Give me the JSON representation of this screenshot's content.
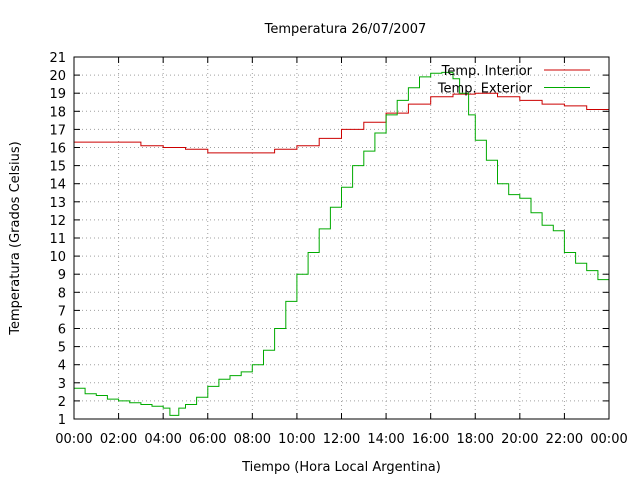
{
  "chart_data": {
    "type": "line",
    "title": "Temperatura 26/07/2007",
    "xlabel": "Tiempo (Hora Local Argentina)",
    "ylabel": "Temperatura (Grados Celsius)",
    "x_ticks": [
      "00:00",
      "02:00",
      "04:00",
      "06:00",
      "08:00",
      "10:00",
      "12:00",
      "14:00",
      "16:00",
      "18:00",
      "20:00",
      "22:00",
      "00:00"
    ],
    "y_ticks": [
      "1",
      "2",
      "3",
      "4",
      "5",
      "6",
      "7",
      "8",
      "9",
      "10",
      "11",
      "12",
      "13",
      "14",
      "15",
      "16",
      "17",
      "18",
      "19",
      "20",
      "21"
    ],
    "xlim": [
      0,
      24
    ],
    "ylim": [
      1,
      21
    ],
    "grid": true,
    "legend_position": "top-right",
    "series": [
      {
        "name": "Temp. Interior",
        "color": "#cc0000",
        "x": [
          0,
          1,
          2,
          3,
          4,
          5,
          6,
          7,
          8,
          9,
          10,
          11,
          12,
          13,
          14,
          15,
          16,
          17,
          18,
          19,
          20,
          21,
          22,
          23,
          24
        ],
        "values": [
          16.3,
          16.3,
          16.3,
          16.1,
          16.0,
          15.9,
          15.7,
          15.7,
          15.7,
          15.9,
          16.1,
          16.5,
          17.0,
          17.4,
          17.9,
          18.4,
          18.8,
          18.95,
          19.0,
          18.8,
          18.6,
          18.4,
          18.3,
          18.1,
          17.8
        ]
      },
      {
        "name": "Temp. Exterior",
        "color": "#00aa00",
        "x": [
          0,
          0.5,
          1,
          1.5,
          2,
          2.5,
          3,
          3.5,
          4,
          4.3,
          4.7,
          5,
          5.5,
          6,
          6.5,
          7,
          7.5,
          8,
          8.5,
          9,
          9.5,
          10,
          10.5,
          11,
          11.5,
          12,
          12.5,
          13,
          13.5,
          14,
          14.5,
          15,
          15.5,
          16,
          16.5,
          17,
          17.3,
          17.7,
          18,
          18.5,
          19,
          19.5,
          20,
          20.5,
          21,
          21.5,
          22,
          22.5,
          23,
          23.5,
          24
        ],
        "values": [
          2.7,
          2.4,
          2.3,
          2.1,
          2.0,
          1.9,
          1.8,
          1.7,
          1.6,
          1.2,
          1.6,
          1.8,
          2.2,
          2.8,
          3.2,
          3.4,
          3.6,
          4.0,
          4.8,
          6.0,
          7.5,
          9.0,
          10.2,
          11.5,
          12.7,
          13.8,
          15.0,
          15.8,
          16.8,
          17.8,
          18.6,
          19.3,
          19.9,
          20.1,
          20.15,
          19.8,
          19.0,
          17.8,
          16.4,
          15.3,
          14.0,
          13.4,
          13.2,
          12.4,
          11.7,
          11.4,
          10.2,
          9.6,
          9.2,
          8.7,
          8.0
        ]
      }
    ]
  }
}
